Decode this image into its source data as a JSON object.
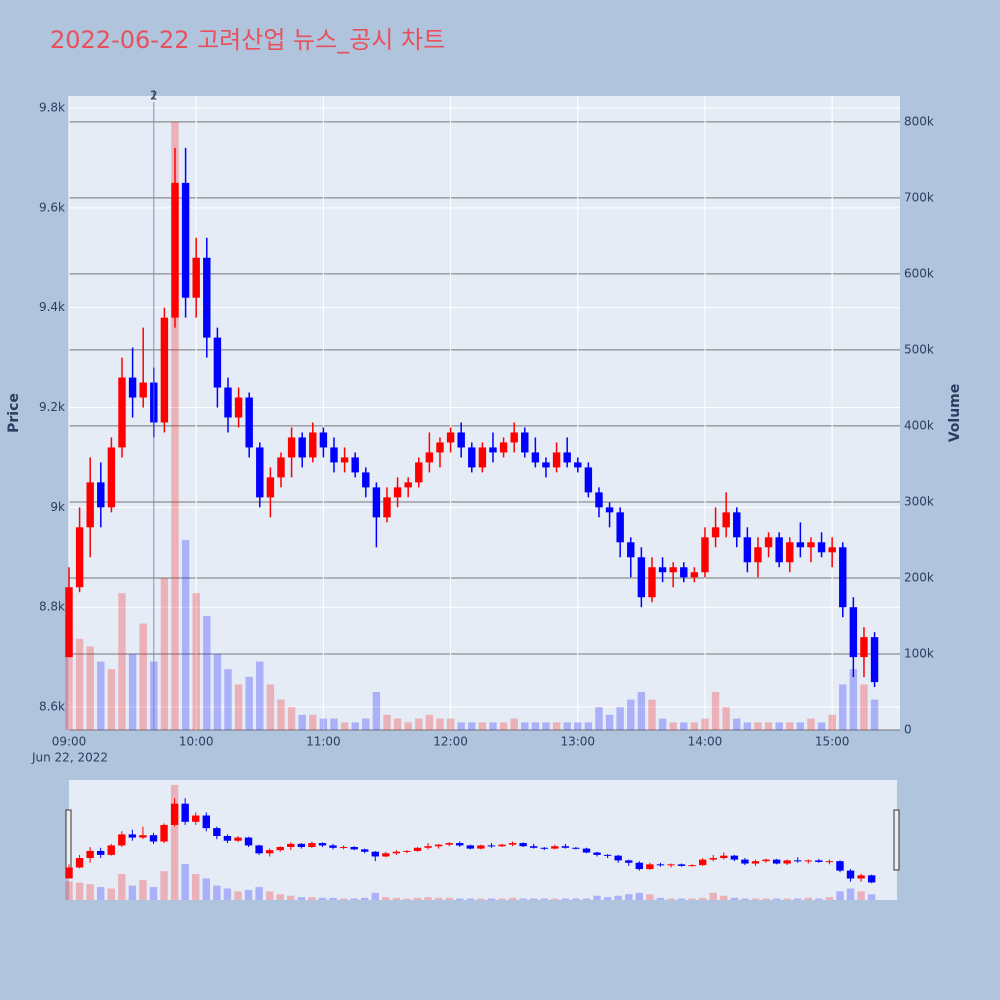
{
  "chart_data": {
    "type": "candlestick",
    "title": "2022-06-22 고려산업 뉴스_공시 차트",
    "y_label": "Price",
    "y2_label": "Volume",
    "x_date_label": "Jun 22, 2022",
    "increasing_color": "#ff0000",
    "decreasing_color": "#0000ff",
    "x": [
      "09:00",
      "09:05",
      "09:10",
      "09:15",
      "09:20",
      "09:25",
      "09:30",
      "09:35",
      "09:40",
      "09:45",
      "09:50",
      "09:55",
      "10:00",
      "10:05",
      "10:10",
      "10:15",
      "10:20",
      "10:25",
      "10:30",
      "10:35",
      "10:40",
      "10:45",
      "10:50",
      "10:55",
      "11:00",
      "11:05",
      "11:10",
      "11:15",
      "11:20",
      "11:25",
      "11:30",
      "11:35",
      "11:40",
      "11:45",
      "11:50",
      "11:55",
      "12:00",
      "12:05",
      "12:10",
      "12:15",
      "12:20",
      "12:25",
      "12:30",
      "12:35",
      "12:40",
      "12:45",
      "12:50",
      "12:55",
      "13:00",
      "13:05",
      "13:10",
      "13:15",
      "13:20",
      "13:25",
      "13:30",
      "13:35",
      "13:40",
      "13:45",
      "13:50",
      "13:55",
      "14:00",
      "14:05",
      "14:10",
      "14:15",
      "14:20",
      "14:25",
      "14:30",
      "14:35",
      "14:40",
      "14:45",
      "14:50",
      "14:55",
      "15:00",
      "15:05",
      "15:10",
      "15:15",
      "15:20"
    ],
    "open": [
      8700,
      8840,
      8960,
      9050,
      9000,
      9120,
      9260,
      9220,
      9250,
      9170,
      9380,
      9650,
      9420,
      9500,
      9340,
      9240,
      9180,
      9220,
      9120,
      9020,
      9060,
      9100,
      9140,
      9100,
      9150,
      9120,
      9090,
      9100,
      9070,
      9040,
      8980,
      9020,
      9040,
      9050,
      9090,
      9110,
      9130,
      9150,
      9120,
      9080,
      9120,
      9110,
      9130,
      9150,
      9110,
      9090,
      9080,
      9110,
      9090,
      9080,
      9030,
      9000,
      8990,
      8930,
      8900,
      8820,
      8880,
      8870,
      8880,
      8860,
      8870,
      8940,
      8960,
      8990,
      8940,
      8890,
      8920,
      8940,
      8890,
      8930,
      8920,
      8930,
      8910,
      8920,
      8800,
      8700,
      8740
    ],
    "high": [
      8880,
      9000,
      9100,
      9090,
      9140,
      9300,
      9320,
      9360,
      9280,
      9400,
      9720,
      9720,
      9540,
      9540,
      9360,
      9260,
      9240,
      9230,
      9130,
      9080,
      9110,
      9160,
      9150,
      9170,
      9160,
      9140,
      9120,
      9110,
      9080,
      9050,
      9040,
      9060,
      9060,
      9100,
      9150,
      9140,
      9160,
      9170,
      9130,
      9130,
      9150,
      9140,
      9170,
      9160,
      9140,
      9100,
      9130,
      9140,
      9100,
      9090,
      9040,
      9010,
      9000,
      8940,
      8920,
      8900,
      8900,
      8890,
      8890,
      8880,
      8960,
      9000,
      9030,
      9000,
      8960,
      8940,
      8950,
      8950,
      8940,
      8970,
      8940,
      8950,
      8940,
      8930,
      8820,
      8760,
      8750
    ],
    "low": [
      8700,
      8830,
      8900,
      8960,
      8990,
      9100,
      9180,
      9200,
      9140,
      9150,
      9360,
      9380,
      9380,
      9300,
      9200,
      9150,
      9160,
      9100,
      9000,
      8980,
      9040,
      9060,
      9080,
      9090,
      9100,
      9070,
      9070,
      9060,
      9020,
      8920,
      8970,
      9000,
      9020,
      9040,
      9070,
      9080,
      9110,
      9100,
      9070,
      9070,
      9090,
      9100,
      9110,
      9100,
      9080,
      9060,
      9070,
      9080,
      9070,
      9020,
      8980,
      8960,
      8900,
      8860,
      8800,
      8810,
      8850,
      8840,
      8850,
      8850,
      8860,
      8920,
      8940,
      8920,
      8870,
      8860,
      8900,
      8880,
      8870,
      8900,
      8890,
      8900,
      8880,
      8780,
      8660,
      8660,
      8640
    ],
    "close": [
      8840,
      8960,
      9050,
      9000,
      9120,
      9260,
      9220,
      9250,
      9170,
      9380,
      9650,
      9420,
      9500,
      9340,
      9240,
      9180,
      9220,
      9120,
      9020,
      9060,
      9100,
      9140,
      9100,
      9150,
      9120,
      9090,
      9100,
      9070,
      9040,
      8980,
      9020,
      9040,
      9050,
      9090,
      9110,
      9130,
      9150,
      9120,
      9080,
      9120,
      9110,
      9130,
      9150,
      9110,
      9090,
      9080,
      9110,
      9090,
      9080,
      9030,
      9000,
      8990,
      8930,
      8900,
      8820,
      8880,
      8870,
      8880,
      8860,
      8870,
      8940,
      8960,
      8990,
      8940,
      8890,
      8920,
      8940,
      8890,
      8930,
      8920,
      8930,
      8910,
      8920,
      8800,
      8700,
      8740,
      8650
    ],
    "volume": [
      130000,
      120000,
      110000,
      90000,
      80000,
      180000,
      100000,
      140000,
      90000,
      200000,
      800000,
      250000,
      180000,
      150000,
      100000,
      80000,
      60000,
      70000,
      90000,
      60000,
      40000,
      30000,
      20000,
      20000,
      15000,
      15000,
      10000,
      10000,
      15000,
      50000,
      20000,
      15000,
      10000,
      15000,
      20000,
      15000,
      15000,
      10000,
      10000,
      10000,
      10000,
      10000,
      15000,
      10000,
      10000,
      10000,
      10000,
      10000,
      10000,
      10000,
      30000,
      20000,
      30000,
      40000,
      50000,
      40000,
      15000,
      10000,
      10000,
      10000,
      15000,
      50000,
      30000,
      15000,
      10000,
      10000,
      10000,
      10000,
      10000,
      10000,
      15000,
      10000,
      20000,
      60000,
      80000,
      60000,
      40000
    ],
    "annotations": [
      {
        "x": "09:40",
        "text": "1"
      },
      {
        "x": "09:40",
        "text": "2"
      }
    ],
    "xlim": [
      "09:00",
      "15:32"
    ],
    "xticks": [
      "09:00",
      "10:00",
      "11:00",
      "12:00",
      "13:00",
      "14:00",
      "15:00"
    ],
    "ylim": [
      8554,
      9824
    ],
    "yticks": [
      {
        "value": 8600,
        "label": "8.6k"
      },
      {
        "value": 8800,
        "label": "8.8k"
      },
      {
        "value": 9000,
        "label": "9k"
      },
      {
        "value": 9200,
        "label": "9.2k"
      },
      {
        "value": 9400,
        "label": "9.4k"
      },
      {
        "value": 9600,
        "label": "9.6k"
      },
      {
        "value": 9800,
        "label": "9.8k"
      }
    ],
    "y2lim": [
      0,
      834000
    ],
    "y2ticks": [
      0,
      {
        "value": 100000,
        "label": "100k"
      },
      {
        "value": 200000,
        "label": "200k"
      },
      {
        "value": 300000,
        "label": "300k"
      },
      {
        "value": 400000,
        "label": "400k"
      },
      {
        "value": 500000,
        "label": "500k"
      },
      {
        "value": 600000,
        "label": "600k"
      },
      {
        "value": 700000,
        "label": "700k"
      },
      {
        "value": 800000,
        "label": "800k"
      }
    ],
    "grid": true,
    "range_slider": true
  }
}
